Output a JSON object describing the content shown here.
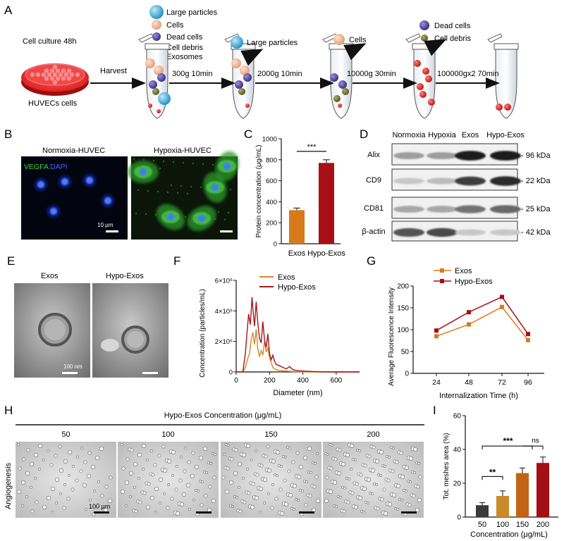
{
  "panel_letters": {
    "A": "A",
    "B": "B",
    "C": "C",
    "D": "D",
    "E": "E",
    "F": "F",
    "G": "G",
    "H": "H",
    "I": "I"
  },
  "panel_a": {
    "legend": [
      {
        "label": "Large particles",
        "color": "#3aa8d8"
      },
      {
        "label": "Cells",
        "color": "#eeb08e"
      },
      {
        "label": "Dead cells",
        "color": "#4b3d95"
      },
      {
        "label": "Cell debris",
        "color": "#6e6a2e"
      },
      {
        "label": "Exosomes",
        "color": "#d02020"
      }
    ],
    "culture_label": "Cell culture 48h",
    "dish_label": "HUVECs cells",
    "harvest_label": "Harvest",
    "steps": [
      "300g 10min",
      "2000g 10min",
      "10000g 30min",
      "100000gx2 70min"
    ],
    "removed": [
      {
        "label": "Large particles",
        "color": "#3aa8d8"
      },
      {
        "label": "Cells",
        "color": "#eeb08e"
      },
      {
        "label": "Dead cells",
        "color": "#4b3d95"
      },
      {
        "label": "Cell debris",
        "color": "#6e6a2e"
      }
    ]
  },
  "panel_b": {
    "title_left": "Normoxia-HUVEC",
    "title_right": "Hypoxia-HUVEC",
    "stain_vegfa": "VEGFA",
    "stain_dapi": "DAPI",
    "scale": "10 μm"
  },
  "panel_c": {
    "chart_data": {
      "type": "bar",
      "categories": [
        "Exos",
        "Hypo-Exos"
      ],
      "values": [
        320,
        770
      ],
      "errors": [
        20,
        30
      ],
      "colors": [
        "#d87a1c",
        "#a80f16"
      ],
      "ylabel": "Protein concentration (μg/mL)",
      "yticks": [
        0,
        200,
        400,
        600,
        800,
        1000
      ],
      "ylim": [
        0,
        1000
      ],
      "significance": "***"
    }
  },
  "panel_d": {
    "columns": [
      "Normoxia",
      "Hypoxia",
      "Exos",
      "Hypo-Exos"
    ],
    "rows": [
      {
        "name": "Alix",
        "kda": "- 96 kDa",
        "intensity": [
          0.35,
          0.35,
          0.95,
          0.95
        ]
      },
      {
        "name": "CD9",
        "kda": "- 22 kDa",
        "intensity": [
          0.15,
          0.2,
          0.8,
          0.9
        ]
      },
      {
        "name": "CD81",
        "kda": "- 25 kDa",
        "intensity": [
          0.3,
          0.3,
          0.55,
          0.6
        ]
      },
      {
        "name": "β-actin",
        "kda": "- 42 kDa",
        "intensity": [
          0.7,
          0.75,
          0.15,
          0.15
        ]
      }
    ]
  },
  "panel_e": {
    "label_left": "Exos",
    "label_right": "Hypo-Exos",
    "scale": "100 nm"
  },
  "panel_f": {
    "chart_data": {
      "type": "line",
      "xlabel": "Diameter (nm)",
      "ylabel": "Concentration (particles/mL)",
      "xticks": [
        0,
        200,
        400,
        600
      ],
      "yticks": [
        "0",
        "2×10⁶",
        "4×10⁶",
        "6×10⁶"
      ],
      "xlim": [
        0,
        740
      ],
      "ylim": [
        0,
        6000000
      ],
      "series": [
        {
          "name": "Exos",
          "color": "#d08a2a",
          "x": [
            0,
            40,
            55,
            70,
            80,
            90,
            100,
            110,
            120,
            130,
            140,
            150,
            160,
            170,
            180,
            190,
            200,
            210,
            220,
            230,
            240,
            260,
            280,
            300,
            320,
            340,
            360,
            400,
            460,
            520,
            600,
            680,
            740
          ],
          "y": [
            0,
            0,
            300000,
            900000,
            1200000,
            2100000,
            2600000,
            1800000,
            2800000,
            1500000,
            1000000,
            1400000,
            1100000,
            2000000,
            1300000,
            1600000,
            900000,
            600000,
            300000,
            200000,
            150000,
            100000,
            80000,
            60000,
            40000,
            30000,
            20000,
            10000,
            5000,
            0,
            0,
            0,
            0
          ]
        },
        {
          "name": "Hypo-Exos",
          "color": "#a3161e",
          "x": [
            0,
            40,
            55,
            65,
            75,
            85,
            95,
            100,
            110,
            120,
            130,
            140,
            150,
            160,
            170,
            180,
            190,
            200,
            210,
            220,
            230,
            240,
            260,
            280,
            300,
            320,
            340,
            360,
            400,
            460,
            520,
            600,
            680,
            740
          ],
          "y": [
            0,
            0,
            1200000,
            2600000,
            3800000,
            3100000,
            4900000,
            4200000,
            3000000,
            4600000,
            3200000,
            2200000,
            1900000,
            3300000,
            2100000,
            1600000,
            2500000,
            1200000,
            800000,
            1100000,
            700000,
            500000,
            400000,
            300000,
            200000,
            350000,
            150000,
            100000,
            60000,
            30000,
            10000,
            0,
            0,
            0
          ]
        }
      ]
    }
  },
  "panel_g": {
    "chart_data": {
      "type": "line",
      "xlabel": "Internalization Time (h)",
      "ylabel": "Average Fluorescence Intensity",
      "categories": [
        "24",
        "48",
        "72",
        "96"
      ],
      "yticks": [
        0,
        50,
        100,
        150,
        200
      ],
      "ylim": [
        0,
        200
      ],
      "series": [
        {
          "name": "Exos",
          "color": "#d87a1c",
          "values": [
            85,
            112,
            152,
            76
          ]
        },
        {
          "name": "Hypo-Exos",
          "color": "#a80f16",
          "values": [
            98,
            140,
            175,
            90
          ]
        }
      ]
    }
  },
  "panel_h": {
    "title": "Hypo-Exos Concentration (μg/mL)",
    "concentrations": [
      "50",
      "100",
      "150",
      "200"
    ],
    "side_label": "Angiogenesis",
    "scale": "100 μm"
  },
  "panel_i": {
    "chart_data": {
      "type": "bar",
      "categories": [
        "50",
        "100",
        "150",
        "200"
      ],
      "values": [
        7,
        12.5,
        26,
        32
      ],
      "errors": [
        1.5,
        3,
        3,
        3.5
      ],
      "colors": [
        "#3a3a3a",
        "#c98a2c",
        "#c26414",
        "#a30f14"
      ],
      "xlabel": "Concentration (μg/mL)",
      "ylabel": "Tot. meshes area (%)",
      "yticks": [
        0,
        20,
        40,
        60
      ],
      "ylim": [
        0,
        60
      ],
      "significance": [
        "**",
        "***",
        "ns"
      ]
    }
  }
}
